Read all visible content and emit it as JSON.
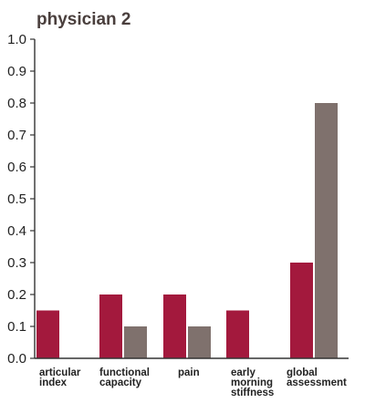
{
  "chart_data": {
    "type": "bar",
    "title": "physician 2",
    "xlabel": "",
    "ylabel": "",
    "ylim": [
      0,
      1.0
    ],
    "yticks": [
      "0.0",
      "0.1",
      "0.2",
      "0.3",
      "0.4",
      "0.5",
      "0.6",
      "0.7",
      "0.8",
      "0.9",
      "1.0"
    ],
    "categories": [
      [
        "articular",
        "index"
      ],
      [
        "functional",
        "capacity"
      ],
      [
        "pain"
      ],
      [
        "early",
        "morning",
        "stiffness"
      ],
      [
        "global",
        "assessment"
      ]
    ],
    "series": [
      {
        "color": "#a3193d",
        "values": [
          0.15,
          0.2,
          0.2,
          0.15,
          0.3
        ]
      },
      {
        "color": "#7f716d",
        "values": [
          0,
          0.1,
          0.1,
          0,
          0.8
        ]
      }
    ],
    "grid": false,
    "legend": "none"
  }
}
